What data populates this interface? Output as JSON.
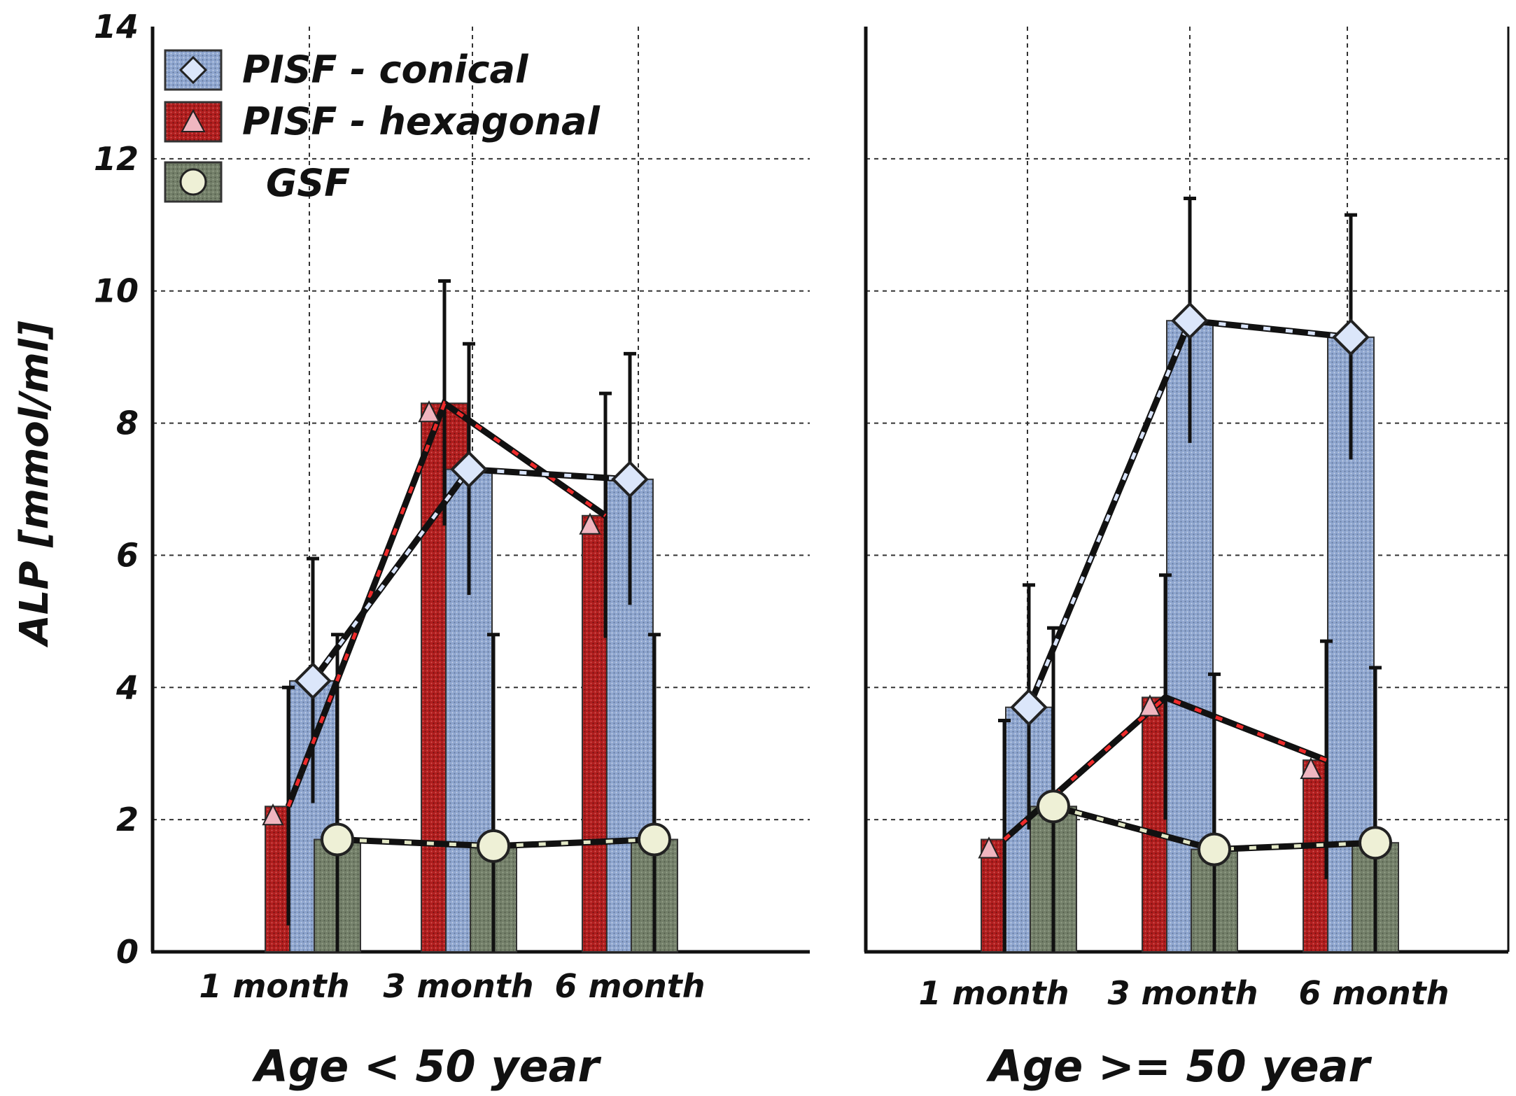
{
  "chart_data": {
    "type": "bar",
    "ylabel": "ALP [mmol/ml]",
    "ylim": [
      0,
      14
    ],
    "yticks": [
      "0",
      "2",
      "4",
      "6",
      "8",
      "10",
      "12",
      "14"
    ],
    "grid": true,
    "legend": {
      "placement": "top-left",
      "entries": [
        "PISF - conical",
        "PISF - hexagonal",
        "GSF"
      ]
    },
    "colors": {
      "PISF - conical": "#8fa6cf",
      "PISF - hexagonal": "#b01e1e",
      "GSF": "#74806a"
    },
    "panels": [
      {
        "title": "Age < 50 year",
        "categories": [
          "1 month",
          "3 month",
          "6 month"
        ],
        "series": [
          {
            "name": "PISF - hexagonal",
            "values": [
              2.2,
              8.3,
              6.6
            ],
            "errors": [
              1.8,
              1.85,
              1.85
            ]
          },
          {
            "name": "PISF - conical",
            "values": [
              4.1,
              7.3,
              7.15
            ],
            "errors": [
              1.85,
              1.9,
              1.9
            ]
          },
          {
            "name": "GSF",
            "values": [
              1.7,
              1.6,
              1.7
            ],
            "errors": [
              3.1,
              3.2,
              3.1
            ]
          }
        ]
      },
      {
        "title": "Age >= 50 year",
        "categories": [
          "1 month",
          "3 month",
          "6 month"
        ],
        "series": [
          {
            "name": "PISF - hexagonal",
            "values": [
              1.7,
              3.85,
              2.9
            ],
            "errors": [
              1.8,
              1.85,
              1.8
            ]
          },
          {
            "name": "PISF - conical",
            "values": [
              3.7,
              9.55,
              9.3
            ],
            "errors": [
              1.85,
              1.85,
              1.85
            ]
          },
          {
            "name": "GSF",
            "values": [
              2.2,
              1.55,
              1.65
            ],
            "errors": [
              2.7,
              2.65,
              2.65
            ]
          }
        ]
      }
    ]
  }
}
